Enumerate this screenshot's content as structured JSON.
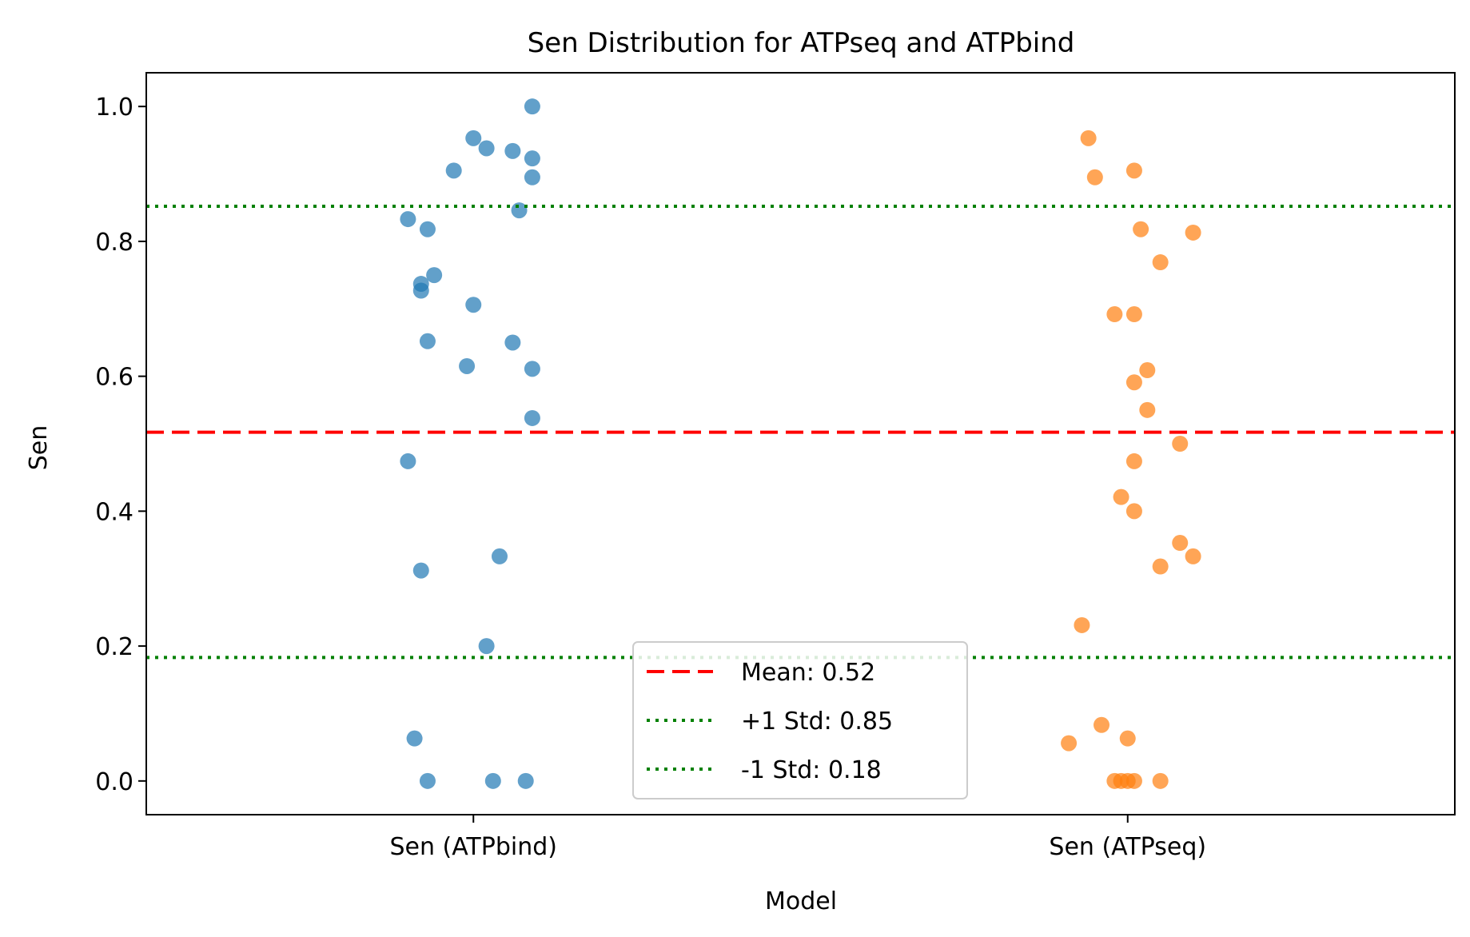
{
  "chart_data": {
    "type": "scatter",
    "title": "Sen Distribution for ATPseq and ATPbind",
    "xlabel": "Model",
    "ylabel": "Sen",
    "categories": [
      "Sen (ATPbind)",
      "Sen (ATPseq)"
    ],
    "ylim": [
      -0.05,
      1.05
    ],
    "yticks": [
      "0.0",
      "0.2",
      "0.4",
      "0.6",
      "0.8",
      "1.0"
    ],
    "grid": false,
    "legend_position": "lower-center",
    "series": [
      {
        "category": "Sen (ATPbind)",
        "color": "#1f77b4",
        "points": [
          {
            "jitter": 0.09,
            "y": 1.0
          },
          {
            "jitter": 0.0,
            "y": 0.953
          },
          {
            "jitter": 0.02,
            "y": 0.938
          },
          {
            "jitter": 0.06,
            "y": 0.934
          },
          {
            "jitter": 0.09,
            "y": 0.923
          },
          {
            "jitter": -0.03,
            "y": 0.905
          },
          {
            "jitter": 0.09,
            "y": 0.895
          },
          {
            "jitter": 0.07,
            "y": 0.846
          },
          {
            "jitter": -0.1,
            "y": 0.833
          },
          {
            "jitter": -0.07,
            "y": 0.818
          },
          {
            "jitter": -0.06,
            "y": 0.75
          },
          {
            "jitter": -0.08,
            "y": 0.737
          },
          {
            "jitter": -0.08,
            "y": 0.727
          },
          {
            "jitter": 0.0,
            "y": 0.706
          },
          {
            "jitter": -0.07,
            "y": 0.652
          },
          {
            "jitter": 0.06,
            "y": 0.65
          },
          {
            "jitter": -0.01,
            "y": 0.615
          },
          {
            "jitter": 0.09,
            "y": 0.611
          },
          {
            "jitter": 0.09,
            "y": 0.538
          },
          {
            "jitter": -0.1,
            "y": 0.474
          },
          {
            "jitter": 0.04,
            "y": 0.333
          },
          {
            "jitter": -0.08,
            "y": 0.312
          },
          {
            "jitter": 0.02,
            "y": 0.2
          },
          {
            "jitter": -0.09,
            "y": 0.063
          },
          {
            "jitter": -0.07,
            "y": 0.0
          },
          {
            "jitter": 0.03,
            "y": 0.0
          },
          {
            "jitter": 0.08,
            "y": 0.0
          }
        ]
      },
      {
        "category": "Sen (ATPseq)",
        "color": "#ff7f0e",
        "points": [
          {
            "jitter": -0.06,
            "y": 0.953
          },
          {
            "jitter": 0.01,
            "y": 0.905
          },
          {
            "jitter": -0.05,
            "y": 0.895
          },
          {
            "jitter": 0.02,
            "y": 0.818
          },
          {
            "jitter": 0.1,
            "y": 0.813
          },
          {
            "jitter": 0.05,
            "y": 0.769
          },
          {
            "jitter": -0.02,
            "y": 0.692
          },
          {
            "jitter": 0.01,
            "y": 0.692
          },
          {
            "jitter": 0.03,
            "y": 0.609
          },
          {
            "jitter": 0.01,
            "y": 0.591
          },
          {
            "jitter": 0.03,
            "y": 0.55
          },
          {
            "jitter": 0.08,
            "y": 0.5
          },
          {
            "jitter": 0.01,
            "y": 0.474
          },
          {
            "jitter": -0.01,
            "y": 0.421
          },
          {
            "jitter": 0.01,
            "y": 0.4
          },
          {
            "jitter": 0.08,
            "y": 0.353
          },
          {
            "jitter": 0.1,
            "y": 0.333
          },
          {
            "jitter": 0.05,
            "y": 0.318
          },
          {
            "jitter": -0.07,
            "y": 0.231
          },
          {
            "jitter": -0.04,
            "y": 0.083
          },
          {
            "jitter": 0.0,
            "y": 0.063
          },
          {
            "jitter": -0.09,
            "y": 0.056
          },
          {
            "jitter": -0.02,
            "y": 0.0
          },
          {
            "jitter": -0.01,
            "y": 0.0
          },
          {
            "jitter": 0.0,
            "y": 0.0
          },
          {
            "jitter": 0.01,
            "y": 0.0
          },
          {
            "jitter": 0.05,
            "y": 0.0
          }
        ]
      }
    ],
    "reference_lines": [
      {
        "label": "Mean: 0.52",
        "y": 0.517,
        "color": "#ff0000",
        "style": "dashed"
      },
      {
        "label": "+1 Std: 0.85",
        "y": 0.852,
        "color": "#008000",
        "style": "dotted"
      },
      {
        "label": "-1 Std: 0.18",
        "y": 0.183,
        "color": "#008000",
        "style": "dotted"
      }
    ]
  }
}
